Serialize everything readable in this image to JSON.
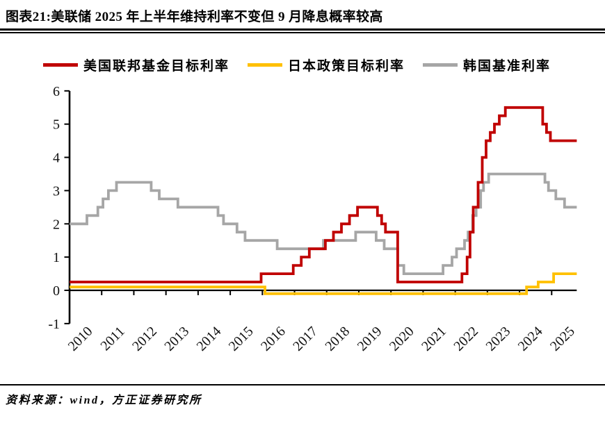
{
  "title": "图表21:美联储 2025 年上半年维持利率不变但 9 月降息概率较高",
  "source": "资料来源：wind，方正证券研究所",
  "chart_data": {
    "type": "line",
    "style": "step",
    "unit": "%",
    "grid": false,
    "legend_position": "top",
    "ylim": [
      -1,
      6
    ],
    "y_ticks": [
      6,
      5,
      4,
      3,
      2,
      1,
      0,
      -1
    ],
    "x_start": 2010.0,
    "x_end": 2025.78,
    "x_labels": [
      "2010",
      "2011",
      "2012",
      "2013",
      "2014",
      "2015",
      "2016",
      "2017",
      "2018",
      "2019",
      "2020",
      "2021",
      "2022",
      "2023",
      "2024",
      "2025"
    ],
    "series": [
      {
        "name": "美国联邦基金目标利率",
        "color": "#C00000",
        "points": [
          [
            2010.0,
            0.25
          ],
          [
            2015.96,
            0.5
          ],
          [
            2016.96,
            0.75
          ],
          [
            2017.21,
            1.0
          ],
          [
            2017.46,
            1.25
          ],
          [
            2017.96,
            1.5
          ],
          [
            2018.21,
            1.75
          ],
          [
            2018.46,
            2.0
          ],
          [
            2018.71,
            2.25
          ],
          [
            2018.96,
            2.5
          ],
          [
            2019.58,
            2.25
          ],
          [
            2019.71,
            2.0
          ],
          [
            2019.83,
            1.75
          ],
          [
            2020.21,
            0.25
          ],
          [
            2022.21,
            0.5
          ],
          [
            2022.37,
            1.0
          ],
          [
            2022.46,
            1.75
          ],
          [
            2022.56,
            2.5
          ],
          [
            2022.71,
            3.25
          ],
          [
            2022.84,
            4.0
          ],
          [
            2022.96,
            4.5
          ],
          [
            2023.09,
            4.75
          ],
          [
            2023.22,
            5.0
          ],
          [
            2023.37,
            5.25
          ],
          [
            2023.56,
            5.5
          ],
          [
            2024.72,
            5.0
          ],
          [
            2024.84,
            4.75
          ],
          [
            2024.96,
            4.5
          ]
        ]
      },
      {
        "name": "日本政策目标利率",
        "color": "#FFC000",
        "points": [
          [
            2010.0,
            0.1
          ],
          [
            2016.08,
            -0.1
          ],
          [
            2024.22,
            0.1
          ],
          [
            2024.58,
            0.25
          ],
          [
            2025.06,
            0.5
          ]
        ]
      },
      {
        "name": "韩国基准利率",
        "color": "#A6A6A6",
        "points": [
          [
            2010.0,
            2.0
          ],
          [
            2010.54,
            2.25
          ],
          [
            2010.88,
            2.5
          ],
          [
            2011.04,
            2.75
          ],
          [
            2011.21,
            3.0
          ],
          [
            2011.46,
            3.25
          ],
          [
            2012.54,
            3.0
          ],
          [
            2012.79,
            2.75
          ],
          [
            2013.37,
            2.5
          ],
          [
            2014.62,
            2.25
          ],
          [
            2014.79,
            2.0
          ],
          [
            2015.21,
            1.75
          ],
          [
            2015.46,
            1.5
          ],
          [
            2016.46,
            1.25
          ],
          [
            2017.9,
            1.5
          ],
          [
            2018.9,
            1.75
          ],
          [
            2019.54,
            1.5
          ],
          [
            2019.79,
            1.25
          ],
          [
            2020.21,
            0.75
          ],
          [
            2020.4,
            0.5
          ],
          [
            2021.62,
            0.75
          ],
          [
            2021.9,
            1.0
          ],
          [
            2022.04,
            1.25
          ],
          [
            2022.29,
            1.5
          ],
          [
            2022.4,
            1.75
          ],
          [
            2022.54,
            2.25
          ],
          [
            2022.65,
            2.5
          ],
          [
            2022.79,
            3.0
          ],
          [
            2022.88,
            3.25
          ],
          [
            2023.04,
            3.5
          ],
          [
            2024.79,
            3.25
          ],
          [
            2024.9,
            3.0
          ],
          [
            2025.13,
            2.75
          ],
          [
            2025.4,
            2.5
          ]
        ]
      }
    ]
  }
}
